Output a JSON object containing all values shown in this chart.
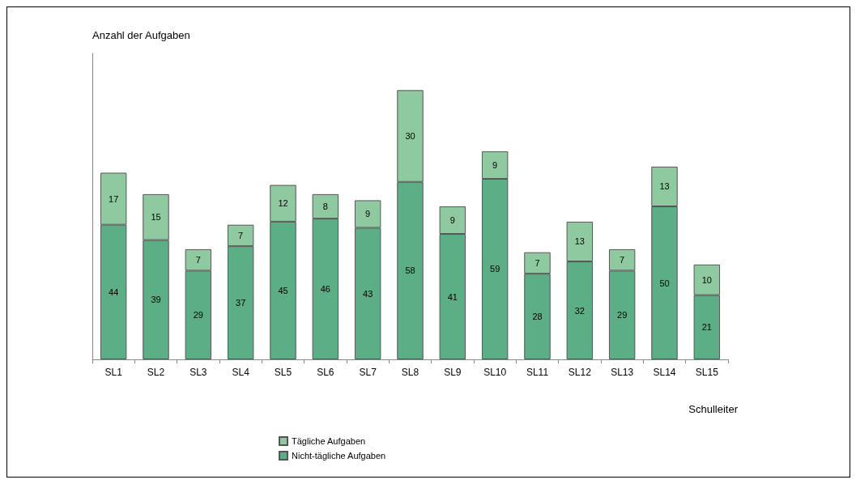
{
  "chart_data": {
    "type": "bar",
    "stacked": true,
    "ylabel": "Anzahl der Aufgaben",
    "xlabel": "Schulleiter",
    "legend": "bottom",
    "grid": false,
    "data_labels": true,
    "categories": [
      "SL1",
      "SL2",
      "SL3",
      "SL4",
      "SL5",
      "SL6",
      "SL7",
      "SL8",
      "SL9",
      "SL10",
      "SL11",
      "SL12",
      "SL13",
      "SL14",
      "SL15"
    ],
    "series": [
      {
        "name": "Nicht-tägliche Aufgaben",
        "color": "#5bae85",
        "values": [
          44,
          39,
          29,
          37,
          45,
          46,
          43,
          58,
          41,
          59,
          28,
          32,
          29,
          50,
          21
        ]
      },
      {
        "name": "Tägliche Aufgaben",
        "color": "#8fc9a0",
        "values": [
          17,
          15,
          7,
          7,
          12,
          8,
          9,
          30,
          9,
          9,
          7,
          13,
          7,
          13,
          10
        ]
      }
    ]
  }
}
